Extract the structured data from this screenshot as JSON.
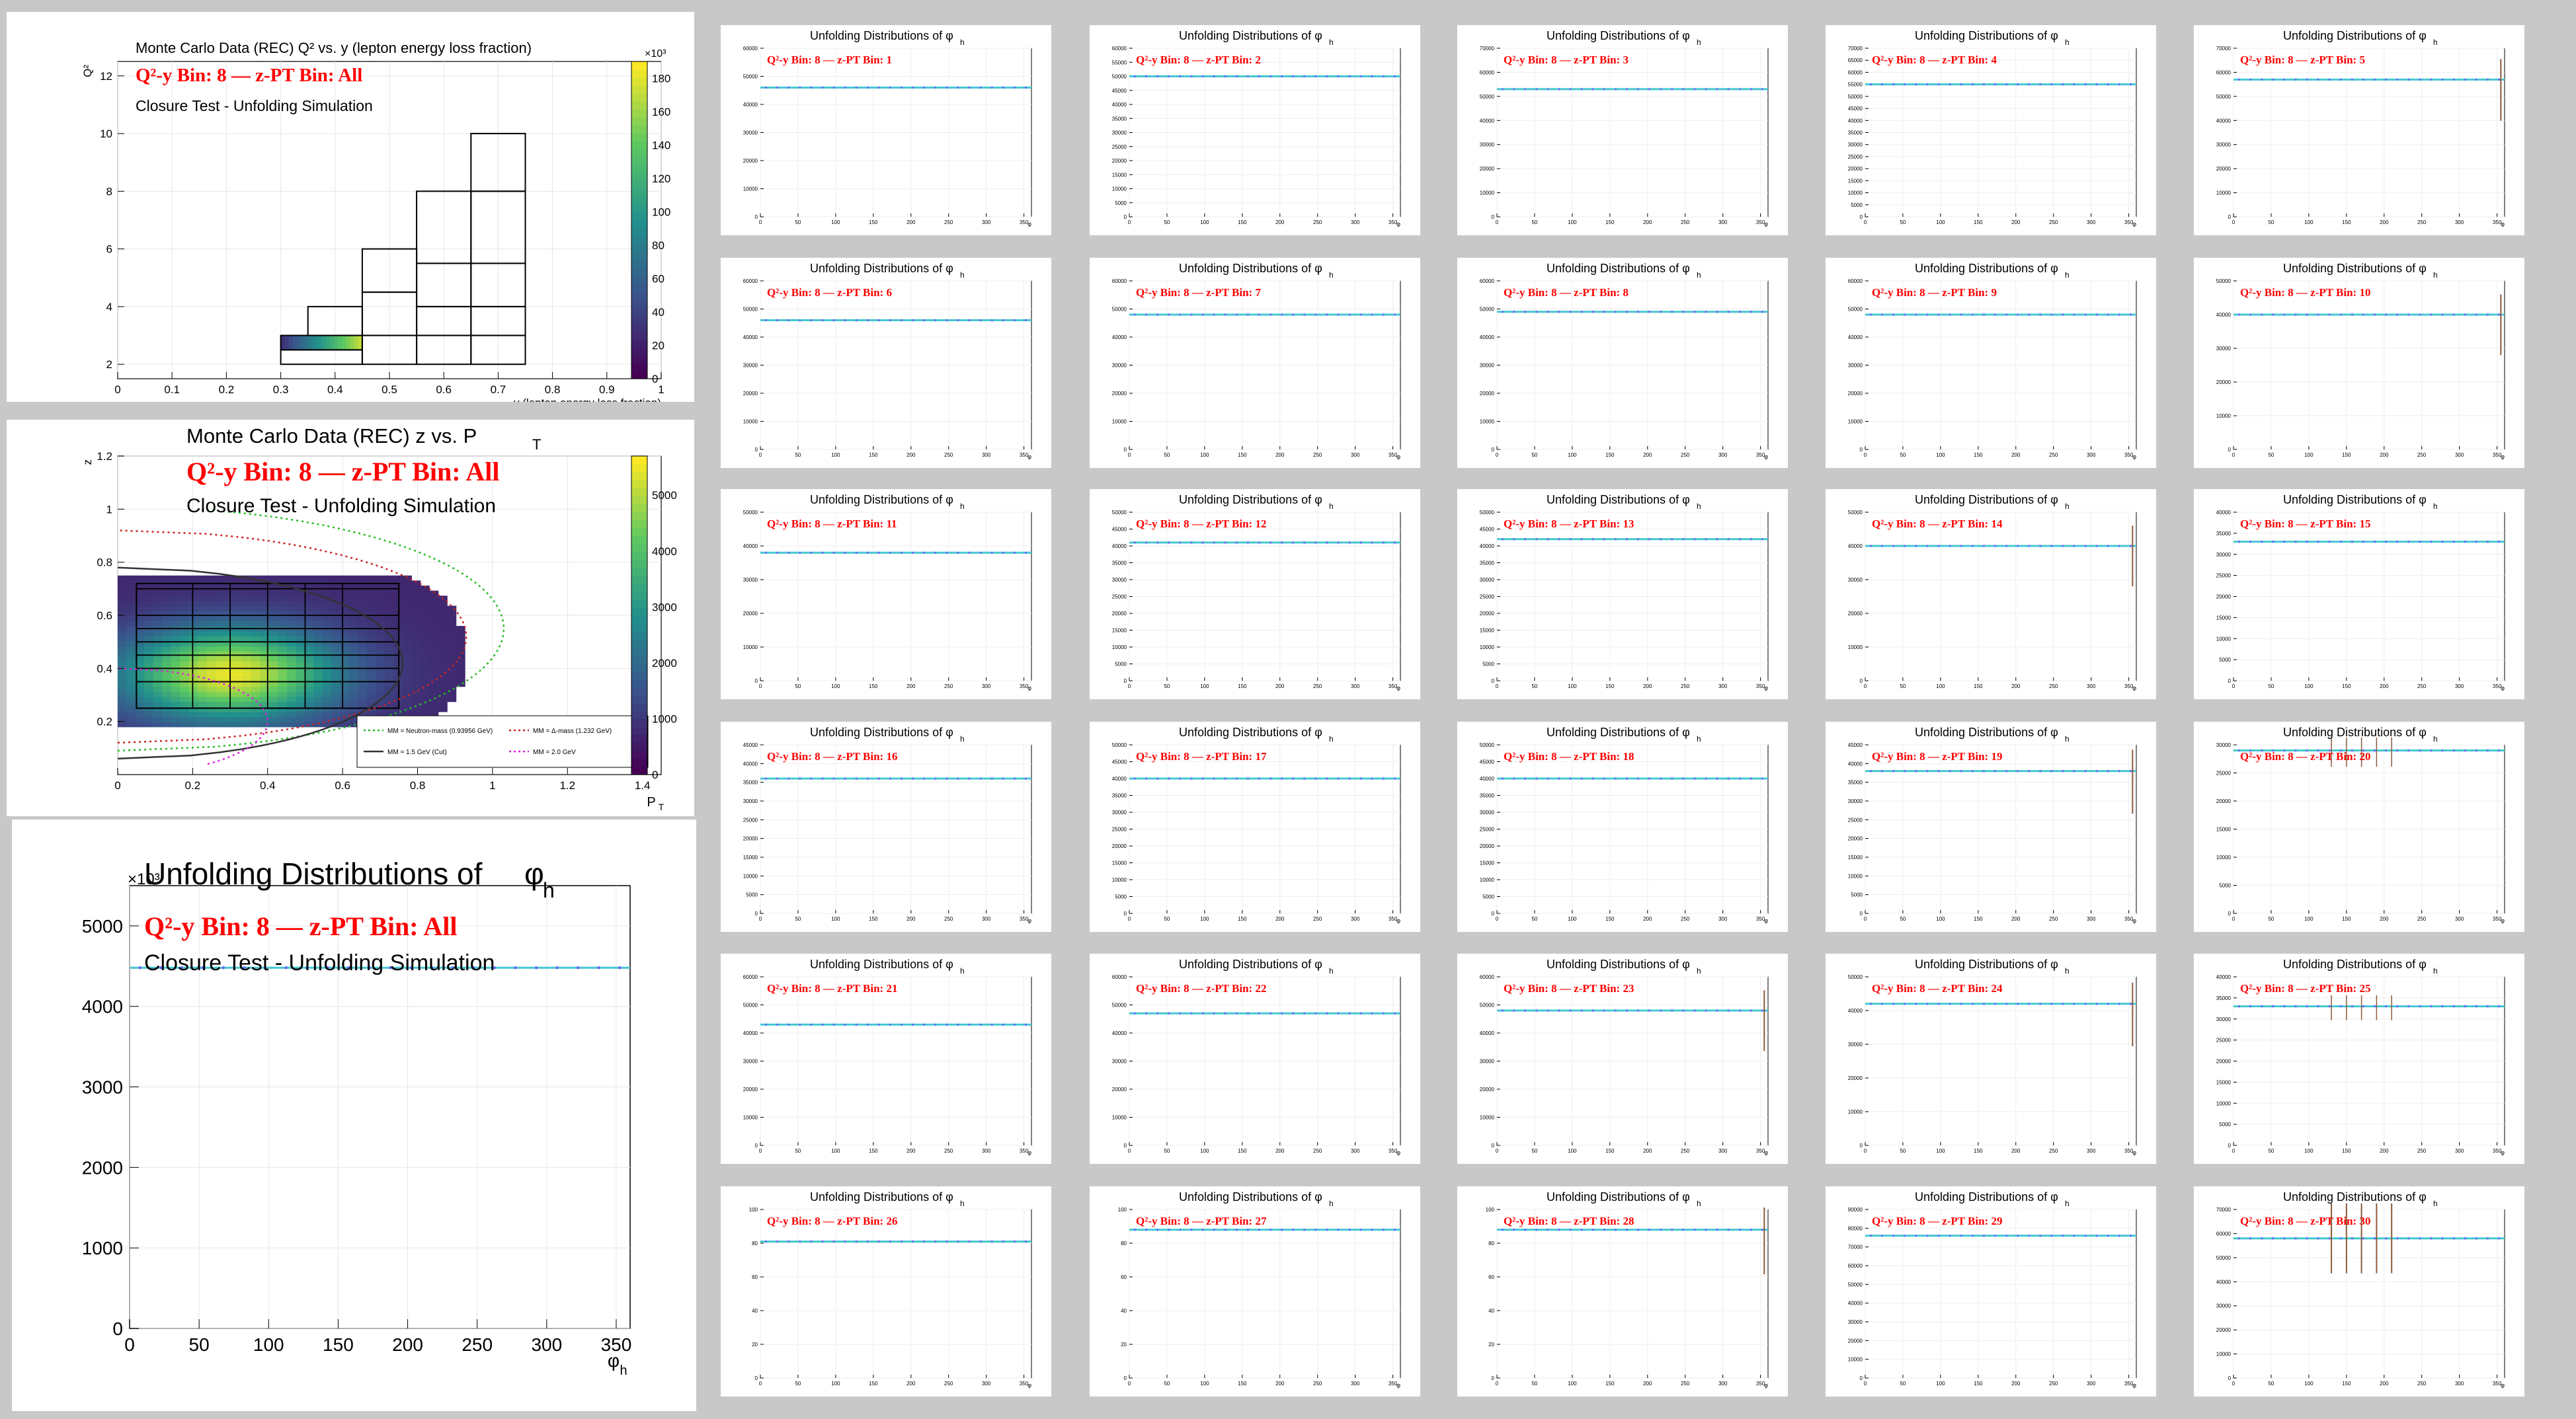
{
  "overview": {
    "q2y": {
      "title": "Monte Carlo Data (REC) Q² vs. y (lepton energy loss fraction)",
      "subtitle": "Q²-y Bin: 8 — z-PT Bin: All",
      "note": "Closure Test - Unfolding Simulation",
      "xlabel": "y (lepton energy loss fraction)",
      "ylabel": "Q²",
      "x_ticks": [
        "0",
        "0.1",
        "0.2",
        "0.3",
        "0.4",
        "0.5",
        "0.6",
        "0.7",
        "0.8",
        "0.9",
        "1"
      ],
      "y_ticks": [
        "2",
        "4",
        "6",
        "8",
        "10",
        "12"
      ],
      "colorbar_ticks": [
        "0",
        "20",
        "40",
        "60",
        "80",
        "100",
        "120",
        "140",
        "160",
        "180"
      ],
      "colorbar_exponent": "×10³"
    },
    "zpt": {
      "title": "Monte Carlo Data (REC) z vs. P",
      "title_sub": "T",
      "subtitle": "Q²-y Bin: 8 — z-PT Bin: All",
      "note": "Closure Test - Unfolding Simulation",
      "xlabel": "P",
      "xlabel_sub": "T",
      "ylabel": "z",
      "x_ticks": [
        "0",
        "0.2",
        "0.4",
        "0.6",
        "0.8",
        "1",
        "1.2",
        "1.4"
      ],
      "y_ticks": [
        "0.2",
        "0.4",
        "0.6",
        "0.8",
        "1",
        "1.2"
      ],
      "colorbar_ticks": [
        "0",
        "1000",
        "2000",
        "3000",
        "4000",
        "5000"
      ],
      "legend": [
        {
          "label": "MM = Neutron-mass (0.93956 GeV)",
          "color": "#22bb22",
          "dash": "dot"
        },
        {
          "label": "MM = Δ-mass (1.232 GeV)",
          "color": "#cc2222",
          "dash": "dot"
        },
        {
          "label": "MM = 1.5 GeV (Cut)",
          "color": "#333333",
          "dash": "solid"
        },
        {
          "label": "MM = 2.0 GeV",
          "color": "#dd22dd",
          "dash": "dot"
        }
      ]
    },
    "phi": {
      "title": "Unfolding Distributions of",
      "title_symbol": "φ",
      "title_sub": "h",
      "subtitle": "Q²-y Bin: 8 — z-PT Bin: All",
      "note": "Closure Test - Unfolding Simulation",
      "xlabel": "φ",
      "xlabel_sub": "h",
      "exponent": "×10³",
      "x_ticks": [
        "0",
        "50",
        "100",
        "150",
        "200",
        "250",
        "300",
        "350"
      ],
      "y_ticks": [
        "0",
        "1000",
        "2000",
        "3000",
        "4000",
        "5000"
      ],
      "x_range": [
        0,
        360
      ],
      "y_range": [
        0,
        5500
      ],
      "level": 4480
    }
  },
  "grid": {
    "title": "Unfolding Distributions of φ",
    "title_sub": "h",
    "subtitle_prefix": "Q²-y Bin: 8 — z-PT Bin:",
    "x_ticks": [
      "0",
      "50",
      "100",
      "150",
      "200",
      "250",
      "300",
      "350"
    ],
    "x_range": [
      0,
      360
    ],
    "panels": [
      {
        "bin": "1",
        "ymax": 60000,
        "ystep": 10000,
        "level": 46000
      },
      {
        "bin": "2",
        "ymax": 60000,
        "ystep": 5000,
        "level": 50000
      },
      {
        "bin": "3",
        "ymax": 70000,
        "ystep": 10000,
        "level": 53000
      },
      {
        "bin": "4",
        "ymax": 70000,
        "ystep": 5000,
        "level": 55000
      },
      {
        "bin": "5",
        "ymax": 70000,
        "ystep": 10000,
        "level": 57000
      },
      {
        "bin": "6",
        "ymax": 60000,
        "ystep": 10000,
        "level": 46000
      },
      {
        "bin": "7",
        "ymax": 60000,
        "ystep": 10000,
        "level": 48000
      },
      {
        "bin": "8",
        "ymax": 60000,
        "ystep": 10000,
        "level": 49000
      },
      {
        "bin": "9",
        "ymax": 60000,
        "ystep": 10000,
        "level": 48000
      },
      {
        "bin": "10",
        "ymax": 50000,
        "ystep": 10000,
        "level": 40000
      },
      {
        "bin": "11",
        "ymax": 50000,
        "ystep": 10000,
        "level": 38000
      },
      {
        "bin": "12",
        "ymax": 50000,
        "ystep": 5000,
        "level": 41000
      },
      {
        "bin": "13",
        "ymax": 50000,
        "ystep": 5000,
        "level": 42000
      },
      {
        "bin": "14",
        "ymax": 50000,
        "ystep": 10000,
        "level": 40000
      },
      {
        "bin": "15",
        "ymax": 40000,
        "ystep": 5000,
        "level": 33000
      },
      {
        "bin": "16",
        "ymax": 45000,
        "ystep": 5000,
        "level": 36000
      },
      {
        "bin": "17",
        "ymax": 50000,
        "ystep": 5000,
        "level": 40000
      },
      {
        "bin": "18",
        "ymax": 50000,
        "ystep": 5000,
        "level": 40000
      },
      {
        "bin": "19",
        "ymax": 45000,
        "ystep": 5000,
        "level": 38000
      },
      {
        "bin": "20",
        "ymax": 30000,
        "ystep": 5000,
        "level": 29000
      },
      {
        "bin": "21",
        "ymax": 60000,
        "ystep": 10000,
        "level": 43000
      },
      {
        "bin": "22",
        "ymax": 60000,
        "ystep": 10000,
        "level": 47000
      },
      {
        "bin": "23",
        "ymax": 60000,
        "ystep": 10000,
        "level": 48000
      },
      {
        "bin": "24",
        "ymax": 50000,
        "ystep": 10000,
        "level": 42000
      },
      {
        "bin": "25",
        "ymax": 40000,
        "ystep": 5000,
        "level": 33000
      },
      {
        "bin": "26",
        "ymax": 100,
        "ystep": 20,
        "level": 81
      },
      {
        "bin": "27",
        "ymax": 100,
        "ystep": 20,
        "level": 88
      },
      {
        "bin": "28",
        "ymax": 100,
        "ystep": 20,
        "level": 88
      },
      {
        "bin": "29",
        "ymax": 90000,
        "ystep": 10000,
        "level": 76000
      },
      {
        "bin": "30",
        "ymax": 70000,
        "ystep": 10000,
        "level": 58000
      }
    ]
  },
  "colors": {
    "background": "#c8c8c8",
    "series": "#44c8d0",
    "markers": "#6666ff",
    "error_bars": "#8b5a3c",
    "subtitle": "#ff0000"
  },
  "chart_data": [
    {
      "type": "heatmap",
      "title": "Monte Carlo Data (REC) Q² vs. y (lepton energy loss fraction)",
      "xlabel": "y (lepton energy loss fraction)",
      "ylabel": "Q²",
      "xlim": [
        0,
        1
      ],
      "ylim": [
        1.5,
        12.5
      ],
      "colorbar_range": [
        0,
        190000
      ]
    },
    {
      "type": "heatmap",
      "title": "Monte Carlo Data (REC) z vs. PT",
      "xlabel": "PT",
      "ylabel": "z",
      "xlim": [
        0,
        1.45
      ],
      "ylim": [
        0,
        1.2
      ],
      "colorbar_range": [
        0,
        5700
      ]
    },
    {
      "type": "scatter",
      "title": "Unfolding Distributions of φh",
      "xlabel": "φh",
      "xlim": [
        0,
        360
      ],
      "ylim": [
        0,
        5500
      ],
      "y_exponent": "×10³",
      "approx_level": 4480
    }
  ]
}
